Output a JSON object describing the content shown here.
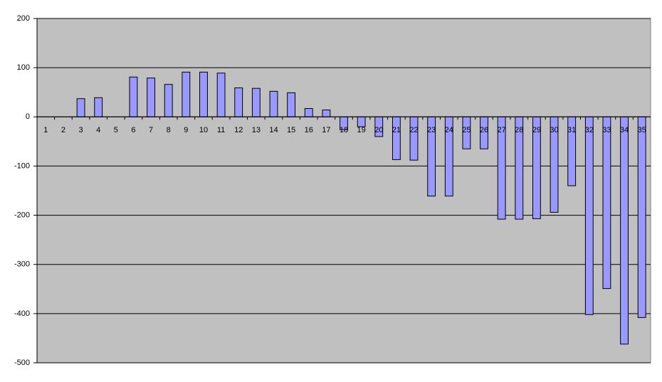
{
  "chart_data": {
    "type": "bar",
    "categories": [
      "1",
      "2",
      "3",
      "4",
      "5",
      "6",
      "7",
      "8",
      "9",
      "10",
      "11",
      "12",
      "13",
      "14",
      "15",
      "16",
      "17",
      "18",
      "19",
      "20",
      "21",
      "22",
      "23",
      "24",
      "25",
      "26",
      "27",
      "28",
      "29",
      "30",
      "31",
      "32",
      "33",
      "34",
      "35"
    ],
    "values": [
      0,
      0,
      37,
      39,
      0,
      81,
      79,
      66,
      91,
      91,
      89,
      59,
      58,
      52,
      49,
      17,
      14,
      -26,
      -20,
      -40,
      -87,
      -88,
      -161,
      -161,
      -65,
      -65,
      -208,
      -208,
      -207,
      -194,
      -140,
      -402,
      -349,
      -462,
      -408
    ],
    "color": "#9999ff",
    "ylim": [
      -500,
      200
    ],
    "yticks": [
      -500,
      -400,
      -300,
      -200,
      -100,
      0,
      100,
      200
    ],
    "grid": true
  }
}
